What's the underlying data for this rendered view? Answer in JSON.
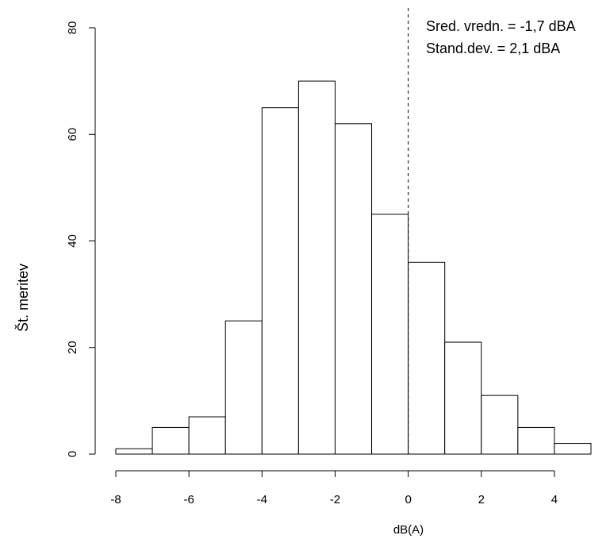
{
  "chart_data": {
    "type": "histogram",
    "xlabel": "dB(A)",
    "ylabel": "Št. meritev",
    "bins": [
      -8,
      -7,
      -6,
      -5,
      -4,
      -3,
      -2,
      -1,
      0,
      1,
      2,
      3,
      4,
      5
    ],
    "counts": [
      1,
      5,
      7,
      25,
      65,
      70,
      62,
      45,
      36,
      21,
      11,
      5,
      2
    ],
    "color": "#ffffff",
    "xlim": [
      -8,
      5
    ],
    "xticks": [
      -8,
      -6,
      -4,
      -2,
      0,
      2,
      4
    ],
    "ylim": [
      0,
      80
    ],
    "yticks": [
      0,
      20,
      40,
      60,
      80
    ],
    "vline": 0,
    "annotations": [
      "Sred. vredn. = -1,7 dBA",
      "Stand.dev. = 2,1 dBA"
    ]
  }
}
